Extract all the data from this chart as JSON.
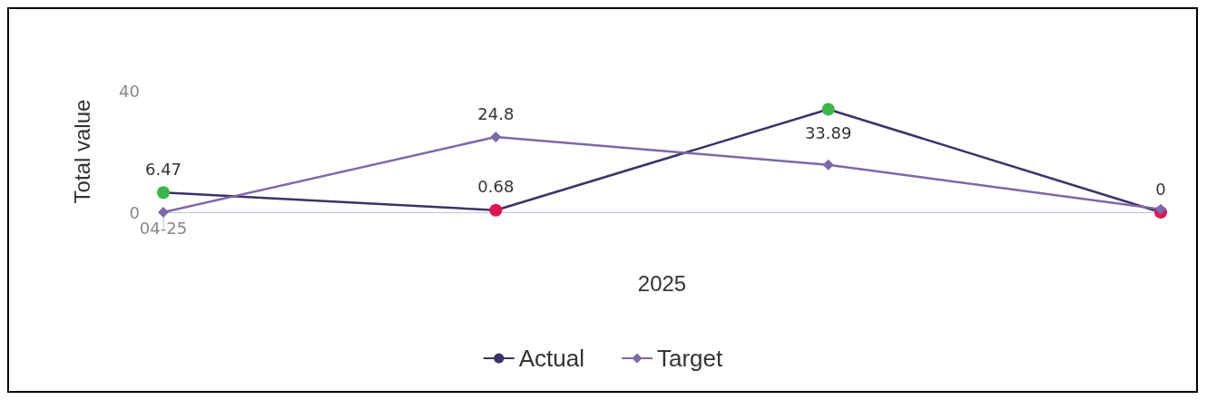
{
  "chart_data": {
    "type": "line",
    "ylabel": "Total value",
    "xlabel": "2025",
    "categories": [
      "04-25",
      null,
      null,
      null
    ],
    "series": [
      {
        "name": "Actual",
        "color": "#3b3366",
        "colors": [
          "#3cb64a",
          "#de1553",
          "#3cb64a",
          "#de1553"
        ],
        "marker": "circle",
        "values": [
          6.47,
          0.68,
          33.89,
          0
        ],
        "value_labels": [
          "6.47",
          "0.68",
          "33.89",
          "0"
        ]
      },
      {
        "name": "Target",
        "color": "#7d68a9",
        "marker": "diamond",
        "values": [
          0,
          24.8,
          15.6,
          1
        ],
        "value_labels": [
          null,
          "24.8",
          null,
          null
        ]
      }
    ],
    "ylim": [
      0,
      40
    ],
    "yticks": [
      0,
      40
    ],
    "grid": false,
    "legend": "bottom",
    "line_style": "solid"
  }
}
